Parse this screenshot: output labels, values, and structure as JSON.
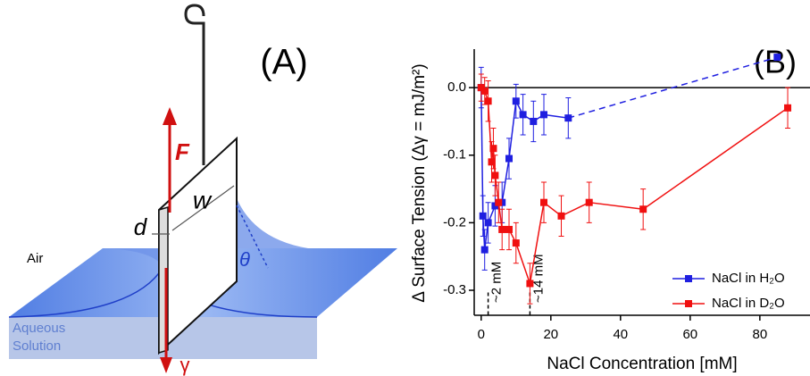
{
  "panel_a": {
    "label": "(A)",
    "force": "F",
    "width": "w",
    "thickness": "d",
    "angle": "θ",
    "air": "Air",
    "solution": [
      "Aqueous",
      "Solution"
    ],
    "tension": "γ"
  },
  "chart_data": {
    "type": "line",
    "panel_label": "(B)",
    "x_label": "NaCl Concentration [mM]",
    "y_label": "Δ Surface Tension (Δγ = mJ/m²)",
    "xlim": [
      -2,
      94.4
    ],
    "ylim": [
      -0.337,
      0.057
    ],
    "xticks": [
      0,
      20,
      40,
      60,
      80
    ],
    "yticks": [
      {
        "value": 0,
        "label": "0.0"
      },
      -0.1,
      -0.2,
      -0.3
    ],
    "zero_line": true,
    "legend": "lower right",
    "series": [
      {
        "name": "NaCl in H₂O",
        "color": "#1f1fe0",
        "x": [
          0,
          0.5,
          1,
          2,
          4,
          6,
          8,
          10,
          12,
          15,
          18,
          25,
          85
        ],
        "values": [
          0,
          -0.19,
          -0.24,
          -0.2,
          -0.175,
          -0.17,
          -0.105,
          -0.02,
          -0.04,
          -0.05,
          -0.04,
          -0.045,
          0.045
        ],
        "errors": [
          0.03,
          0.03,
          0.03,
          0.03,
          0.03,
          0.03,
          0.03,
          0.025,
          0.03,
          0.03,
          0.03,
          0.03,
          0
        ],
        "dashed_from": 11
      },
      {
        "name": "NaCl in D₂O",
        "color": "#f01010",
        "x": [
          0,
          1,
          2,
          3,
          3.5,
          4,
          5,
          6,
          8,
          10,
          14,
          18,
          23,
          31,
          46.5,
          88
        ],
        "values": [
          0,
          -0.005,
          -0.02,
          -0.11,
          -0.09,
          -0.13,
          -0.17,
          -0.21,
          -0.21,
          -0.23,
          -0.29,
          -0.17,
          -0.19,
          -0.17,
          -0.18,
          -0.03
        ],
        "errors": [
          0.02,
          0.02,
          0.03,
          0.03,
          0.03,
          0.03,
          0.03,
          0.03,
          0.03,
          0.03,
          0.03,
          0.03,
          0.03,
          0.03,
          0.03,
          0.03
        ]
      }
    ],
    "annotations": [
      {
        "text": "~2 mM",
        "x": 2
      },
      {
        "text": "~14 mM",
        "x": 14
      }
    ]
  }
}
